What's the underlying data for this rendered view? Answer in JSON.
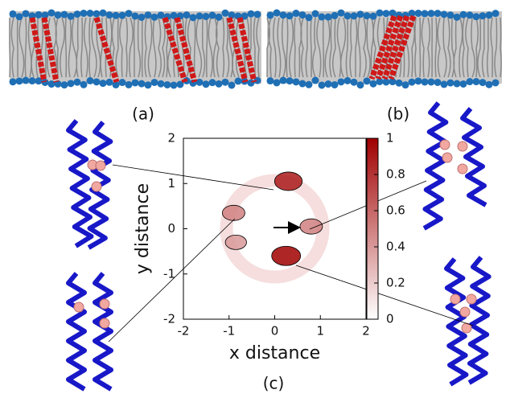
{
  "panel_labels": [
    "(a)",
    "(b)",
    "(c)"
  ],
  "chart_data": {
    "type": "density",
    "xlabel": "x distance",
    "ylabel": "y distance",
    "xlim": [
      -2,
      2
    ],
    "ylim": [
      -2,
      2
    ],
    "xticks": [
      -2,
      -1,
      0,
      1,
      2
    ],
    "yticks": [
      -2,
      -1,
      0,
      1,
      2
    ],
    "color": "#a00000",
    "colorbar": {
      "lim": [
        0,
        1
      ],
      "ticks": [
        0,
        0.2,
        0.4,
        0.6,
        0.8,
        1
      ]
    },
    "peaks": [
      {
        "x": 0.3,
        "y": 1.05,
        "value": 0.9
      },
      {
        "x": 0.25,
        "y": -0.6,
        "value": 1
      },
      {
        "x": 0.8,
        "y": 0.05,
        "value": 0.5
      },
      {
        "x": -0.9,
        "y": 0.35,
        "value": 0.5
      },
      {
        "x": -0.85,
        "y": -0.3,
        "value": 0.4
      }
    ]
  }
}
